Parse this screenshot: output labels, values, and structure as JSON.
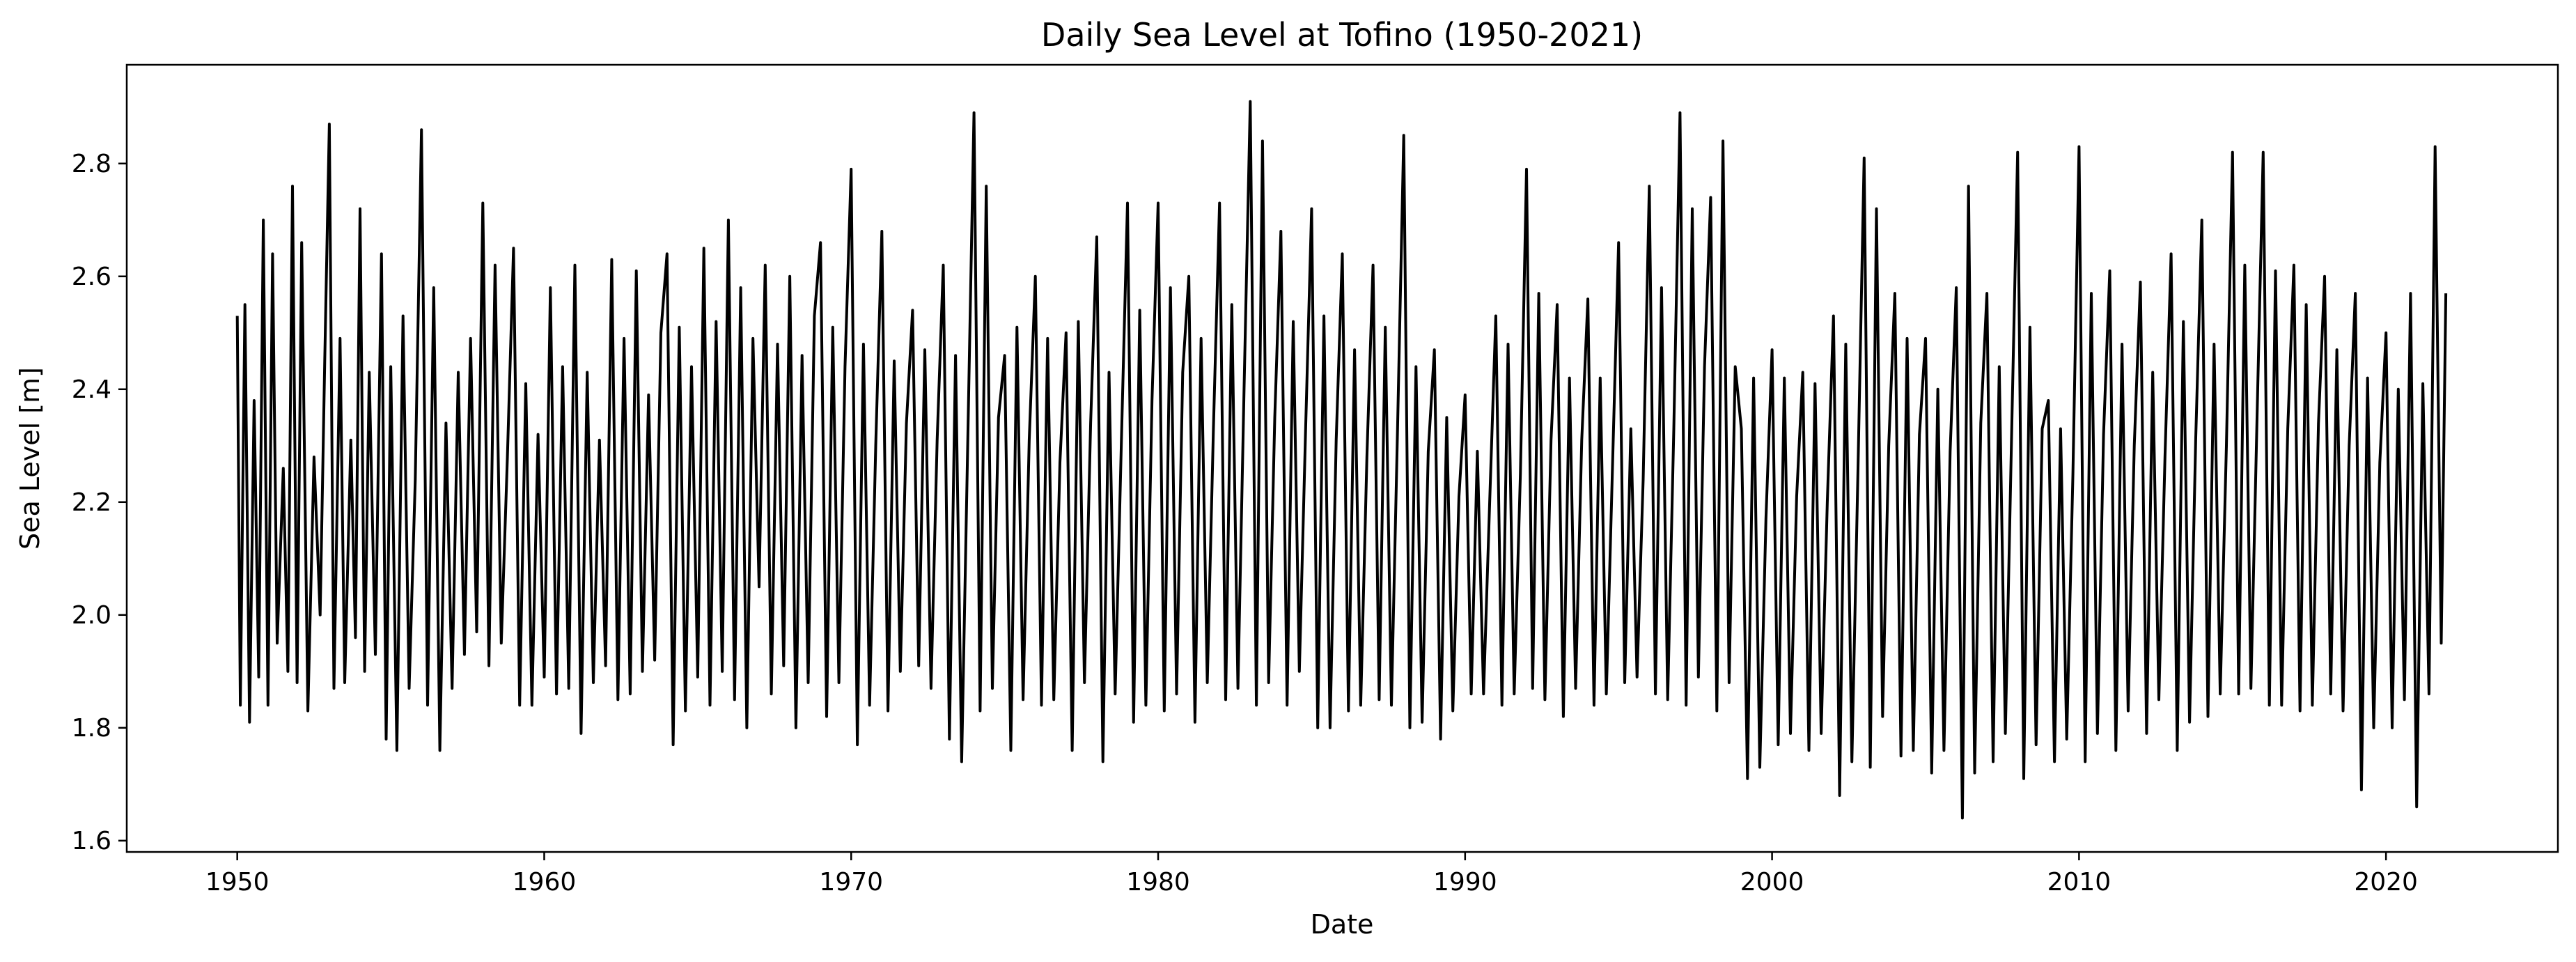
{
  "chart_data": {
    "type": "line",
    "title": "Daily Sea Level at Tofino (1950-2021)",
    "xlabel": "Date",
    "ylabel": "Sea Level [m]",
    "xlim": [
      1946.4,
      2025.6
    ],
    "ylim": [
      1.58,
      2.975
    ],
    "xticks": [
      1950,
      1960,
      1970,
      1980,
      1990,
      2000,
      2010,
      2020
    ],
    "xtick_labels": [
      "1950",
      "1960",
      "1970",
      "1980",
      "1990",
      "2000",
      "2010",
      "2020"
    ],
    "yticks": [
      1.6,
      1.8,
      2.0,
      2.2,
      2.4,
      2.6,
      2.8
    ],
    "ytick_labels": [
      "1.6",
      "1.8",
      "2.0",
      "2.2",
      "2.4",
      "2.6",
      "2.8"
    ],
    "grid": false,
    "legend": "none",
    "line_color": "#000000",
    "series": [
      {
        "x": [
          1950.0,
          1950.1,
          1950.25,
          1950.4,
          1950.55,
          1950.7,
          1950.85,
          1951.0,
          1951.15,
          1951.3,
          1951.5,
          1951.65,
          1951.8,
          1951.95,
          1952.1,
          1952.3,
          1952.5,
          1952.7,
          1952.85,
          1953.0,
          1953.15,
          1953.35,
          1953.5,
          1953.7,
          1953.85,
          1954.0,
          1954.15,
          1954.3,
          1954.5,
          1954.7,
          1954.85,
          1955.0,
          1955.2,
          1955.4,
          1955.6,
          1955.8,
          1956.0,
          1956.2,
          1956.4,
          1956.6,
          1956.8,
          1957.0,
          1957.2,
          1957.4,
          1957.6,
          1957.8,
          1958.0,
          1958.2,
          1958.4,
          1958.6,
          1958.8,
          1959.0,
          1959.2,
          1959.4,
          1959.6,
          1959.8,
          1960.0,
          1960.2,
          1960.4,
          1960.6,
          1960.8,
          1961.0,
          1961.2,
          1961.4,
          1961.6,
          1961.8,
          1962.0,
          1962.2,
          1962.4,
          1962.6,
          1962.8,
          1963.0,
          1963.2,
          1963.4,
          1963.6,
          1963.8,
          1964.0,
          1964.2,
          1964.4,
          1964.6,
          1964.8,
          1965.0,
          1965.2,
          1965.4,
          1965.6,
          1965.8,
          1966.0,
          1966.2,
          1966.4,
          1966.6,
          1966.8,
          1967.0,
          1967.2,
          1967.4,
          1967.6,
          1967.8,
          1968.0,
          1968.2,
          1968.4,
          1968.6,
          1968.8,
          1969.0,
          1969.2,
          1969.4,
          1969.6,
          1969.8,
          1970.0,
          1970.2,
          1970.4,
          1970.6,
          1970.8,
          1971.0,
          1971.2,
          1971.4,
          1971.6,
          1971.8,
          1972.0,
          1972.2,
          1972.4,
          1972.6,
          1972.8,
          1973.0,
          1973.2,
          1973.4,
          1973.6,
          1973.8,
          1974.0,
          1974.2,
          1974.4,
          1974.6,
          1974.8,
          1975.0,
          1975.2,
          1975.4,
          1975.6,
          1975.8,
          1976.0,
          1976.2,
          1976.4,
          1976.6,
          1976.8,
          1977.0,
          1977.2,
          1977.4,
          1977.6,
          1977.8,
          1978.0,
          1978.2,
          1978.4,
          1978.6,
          1978.8,
          1979.0,
          1979.2,
          1979.4,
          1979.6,
          1979.8,
          1980.0,
          1980.2,
          1980.4,
          1980.6,
          1980.8,
          1981.0,
          1981.2,
          1981.4,
          1981.6,
          1981.8,
          1982.0,
          1982.2,
          1982.4,
          1982.6,
          1982.8,
          1983.0,
          1983.2,
          1983.4,
          1983.6,
          1983.8,
          1984.0,
          1984.2,
          1984.4,
          1984.6,
          1984.8,
          1985.0,
          1985.2,
          1985.4,
          1985.6,
          1985.8,
          1986.0,
          1986.2,
          1986.4,
          1986.6,
          1986.8,
          1987.0,
          1987.2,
          1987.4,
          1987.6,
          1987.8,
          1988.0,
          1988.2,
          1988.4,
          1988.6,
          1988.8,
          1989.0,
          1989.2,
          1989.4,
          1989.6,
          1989.8,
          1990.0,
          1990.2,
          1990.4,
          1990.6,
          1990.8,
          1991.0,
          1991.2,
          1991.4,
          1991.6,
          1991.8,
          1992.0,
          1992.2,
          1992.4,
          1992.6,
          1992.8,
          1993.0,
          1993.2,
          1993.4,
          1993.6,
          1993.8,
          1994.0,
          1994.2,
          1994.4,
          1994.6,
          1994.8,
          1995.0,
          1995.2,
          1995.4,
          1995.6,
          1995.8,
          1996.0,
          1996.2,
          1996.4,
          1996.6,
          1996.8,
          1997.0,
          1997.2,
          1997.4,
          1997.6,
          1997.8,
          1998.0,
          1998.2,
          1998.4,
          1998.6,
          1998.8,
          1999.0,
          1999.2,
          1999.4,
          1999.6,
          1999.8,
          2000.0,
          2000.2,
          2000.4,
          2000.6,
          2000.8,
          2001.0,
          2001.2,
          2001.4,
          2001.6,
          2001.8,
          2002.0,
          2002.2,
          2002.4,
          2002.6,
          2002.8,
          2003.0,
          2003.2,
          2003.4,
          2003.6,
          2003.8,
          2004.0,
          2004.2,
          2004.4,
          2004.6,
          2004.8,
          2005.0,
          2005.2,
          2005.4,
          2005.6,
          2005.8,
          2006.0,
          2006.2,
          2006.4,
          2006.6,
          2006.8,
          2007.0,
          2007.2,
          2007.4,
          2007.6,
          2007.8,
          2008.0,
          2008.2,
          2008.4,
          2008.6,
          2008.8,
          2009.0,
          2009.2,
          2009.4,
          2009.6,
          2009.8,
          2010.0,
          2010.2,
          2010.4,
          2010.6,
          2010.8,
          2011.0,
          2011.2,
          2011.4,
          2011.6,
          2011.8,
          2012.0,
          2012.2,
          2012.4,
          2012.6,
          2012.8,
          2013.0,
          2013.2,
          2013.4,
          2013.6,
          2013.8,
          2014.0,
          2014.2,
          2014.4,
          2014.6,
          2014.8,
          2015.0,
          2015.2,
          2015.4,
          2015.6,
          2015.8,
          2016.0,
          2016.2,
          2016.4,
          2016.6,
          2016.8,
          2017.0,
          2017.2,
          2017.4,
          2017.6,
          2017.8,
          2018.0,
          2018.2,
          2018.4,
          2018.6,
          2018.8,
          2019.0,
          2019.2,
          2019.4,
          2019.6,
          2019.8,
          2020.0,
          2020.2,
          2020.4,
          2020.6,
          2020.8,
          2021.0,
          2021.2,
          2021.4,
          2021.6,
          2021.8,
          2021.95
        ],
        "y": [
          2.53,
          1.84,
          2.55,
          1.81,
          2.38,
          1.89,
          2.7,
          1.84,
          2.64,
          1.95,
          2.26,
          1.9,
          2.76,
          1.88,
          2.66,
          1.83,
          2.28,
          2.0,
          2.45,
          2.87,
          1.87,
          2.49,
          1.88,
          2.31,
          1.96,
          2.72,
          1.9,
          2.43,
          1.93,
          2.64,
          1.78,
          2.44,
          1.76,
          2.53,
          1.87,
          2.24,
          2.86,
          1.84,
          2.58,
          1.76,
          2.34,
          1.87,
          2.43,
          1.93,
          2.49,
          1.97,
          2.73,
          1.91,
          2.62,
          1.95,
          2.28,
          2.65,
          1.84,
          2.41,
          1.84,
          2.32,
          1.89,
          2.58,
          1.86,
          2.44,
          1.87,
          2.62,
          1.79,
          2.43,
          1.88,
          2.31,
          1.91,
          2.63,
          1.85,
          2.49,
          1.86,
          2.61,
          1.9,
          2.39,
          1.92,
          2.5,
          2.64,
          1.77,
          2.51,
          1.83,
          2.44,
          1.89,
          2.65,
          1.84,
          2.52,
          1.9,
          2.7,
          1.85,
          2.58,
          1.8,
          2.49,
          2.05,
          2.62,
          1.86,
          2.48,
          1.91,
          2.6,
          1.8,
          2.46,
          1.88,
          2.53,
          2.66,
          1.82,
          2.51,
          1.88,
          2.44,
          2.79,
          1.77,
          2.48,
          1.84,
          2.3,
          2.68,
          1.83,
          2.45,
          1.9,
          2.34,
          2.54,
          1.91,
          2.47,
          1.87,
          2.31,
          2.62,
          1.78,
          2.46,
          1.74,
          2.31,
          2.89,
          1.83,
          2.76,
          1.87,
          2.35,
          2.46,
          1.76,
          2.51,
          1.85,
          2.31,
          2.6,
          1.84,
          2.49,
          1.85,
          2.27,
          2.5,
          1.76,
          2.52,
          1.88,
          2.34,
          2.67,
          1.74,
          2.43,
          1.86,
          2.3,
          2.73,
          1.81,
          2.54,
          1.84,
          2.38,
          2.73,
          1.83,
          2.58,
          1.86,
          2.43,
          2.6,
          1.81,
          2.49,
          1.88,
          2.33,
          2.73,
          1.85,
          2.55,
          1.87,
          2.4,
          2.91,
          1.84,
          2.84,
          1.88,
          2.35,
          2.68,
          1.84,
          2.52,
          1.9,
          2.32,
          2.72,
          1.8,
          2.53,
          1.8,
          2.31,
          2.64,
          1.83,
          2.47,
          1.84,
          2.28,
          2.62,
          1.85,
          2.51,
          1.84,
          2.33,
          2.85,
          1.8,
          2.44,
          1.81,
          2.29,
          2.47,
          1.78,
          2.35,
          1.83,
          2.21,
          2.39,
          1.86,
          2.29,
          1.86,
          2.2,
          2.53,
          1.84,
          2.48,
          1.86,
          2.25,
          2.79,
          1.87,
          2.57,
          1.85,
          2.31,
          2.55,
          1.82,
          2.42,
          1.87,
          2.31,
          2.56,
          1.84,
          2.42,
          1.86,
          2.26,
          2.66,
          1.88,
          2.33,
          1.89,
          2.24,
          2.76,
          1.86,
          2.58,
          1.85,
          2.33,
          2.89,
          1.84,
          2.72,
          1.89,
          2.44,
          2.74,
          1.83,
          2.84,
          1.88,
          2.44,
          2.33,
          1.71,
          2.42,
          1.73,
          2.17,
          2.47,
          1.77,
          2.42,
          1.79,
          2.21,
          2.43,
          1.76,
          2.41,
          1.79,
          2.2,
          2.53,
          1.68,
          2.48,
          1.74,
          2.26,
          2.81,
          1.73,
          2.72,
          1.82,
          2.3,
          2.57,
          1.75,
          2.49,
          1.76,
          2.32,
          2.49,
          1.72,
          2.4,
          1.76,
          2.29,
          2.58,
          1.64,
          2.76,
          1.72,
          2.34,
          2.57,
          1.74,
          2.44,
          1.79,
          2.31,
          2.82,
          1.71,
          2.51,
          1.77,
          2.33,
          2.38,
          1.74,
          2.33,
          1.78,
          2.25,
          2.83,
          1.74,
          2.57,
          1.79,
          2.32,
          2.61,
          1.76,
          2.48,
          1.83,
          2.3,
          2.59,
          1.79,
          2.43,
          1.85,
          2.28,
          2.64,
          1.76,
          2.52,
          1.81,
          2.31,
          2.7,
          1.82,
          2.48,
          1.86,
          2.3,
          2.82,
          1.86,
          2.62,
          1.87,
          2.35,
          2.82,
          1.84,
          2.61,
          1.84,
          2.33,
          2.62,
          1.83,
          2.55,
          1.84,
          2.34,
          2.6,
          1.86,
          2.47,
          1.83,
          2.3,
          2.57,
          1.69,
          2.42,
          1.8,
          2.27,
          2.5,
          1.8,
          2.4,
          1.85,
          2.57,
          1.66,
          2.41,
          1.86,
          2.83,
          1.95,
          2.57
        ]
      }
    ]
  }
}
